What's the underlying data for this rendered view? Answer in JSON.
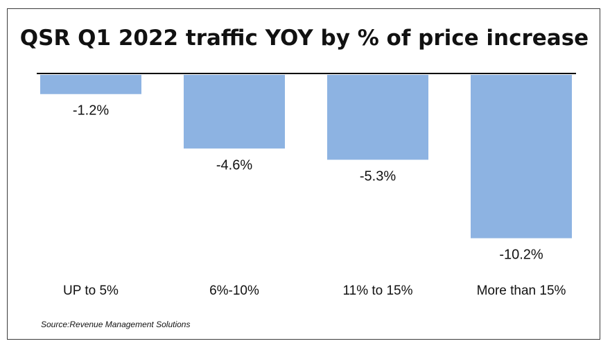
{
  "chart_data": {
    "type": "bar",
    "title": "QSR Q1 2022 traffic YOY by % of price increase",
    "categories": [
      "UP to 5%",
      "6%-10%",
      "11% to 15%",
      "More than 15%"
    ],
    "values": [
      -1.2,
      -4.6,
      -5.3,
      -10.2
    ],
    "value_labels": [
      "-1.2%",
      "-4.6%",
      "-5.3%",
      "-10.2%"
    ],
    "ylim": [
      -12,
      0
    ],
    "grid": false,
    "legend": "none",
    "bar_color": "#8db3e2",
    "axis_color": "#000000"
  },
  "source": "Source:Revenue Management Solutions"
}
